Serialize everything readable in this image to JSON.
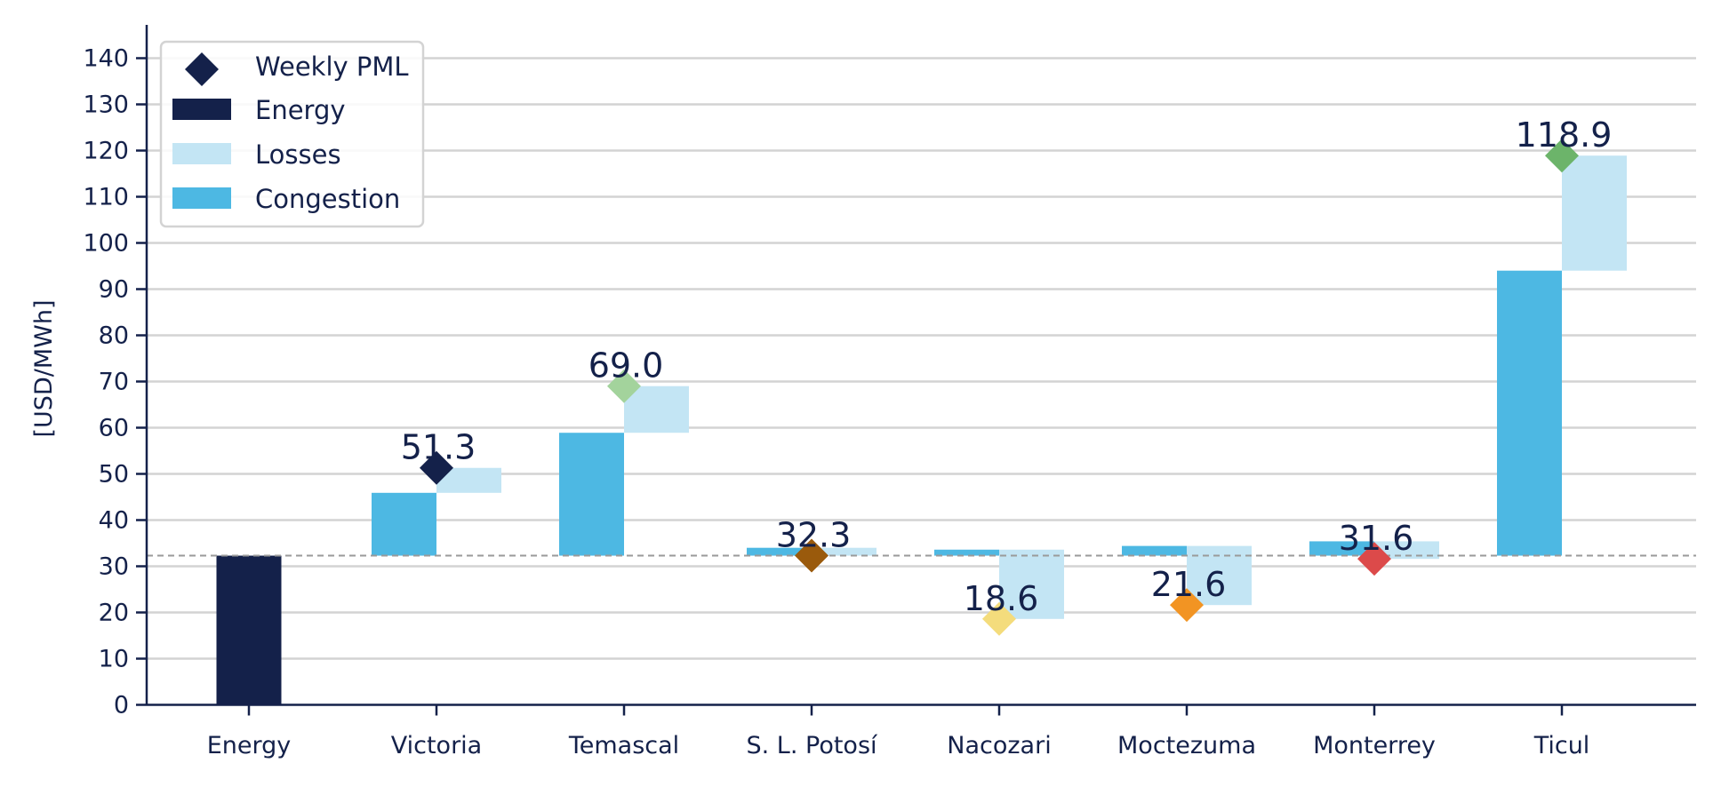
{
  "chart_data": {
    "type": "bar",
    "ylabel": "[USD/MWh]",
    "xlabel": "",
    "ylim": [
      0,
      145
    ],
    "yticks": [
      0,
      10,
      20,
      30,
      40,
      50,
      60,
      70,
      80,
      90,
      100,
      110,
      120,
      130,
      140
    ],
    "grid": "horizontal",
    "legend_position": "top-left",
    "reference_line": 32.3,
    "legend": [
      {
        "key": "pml",
        "label": "Weekly PML",
        "shape": "diamond",
        "color": "#14214a"
      },
      {
        "key": "energy",
        "label": "Energy",
        "shape": "rect",
        "color": "#14214a"
      },
      {
        "key": "losses",
        "label": "Losses",
        "shape": "rect",
        "color": "#c3e5f4"
      },
      {
        "key": "congestion",
        "label": "Congestion",
        "shape": "rect",
        "color": "#4db8e3"
      }
    ],
    "categories": [
      "Energy",
      "Victoria",
      "Temascal",
      "S. L. Potosí",
      "Nacozari",
      "Moctezuma",
      "Monterrey",
      "Ticul"
    ],
    "energy": 32.3,
    "congestion_end": [
      null,
      45.9,
      58.9,
      34.0,
      33.6,
      34.4,
      35.4,
      94.0
    ],
    "pml": [
      null,
      51.3,
      69.0,
      32.3,
      18.6,
      21.6,
      31.6,
      118.9
    ],
    "pml_labels": [
      "",
      "51.3",
      "69.0",
      "32.3",
      "18.6",
      "21.6",
      "31.6",
      "118.9"
    ],
    "marker_colors": [
      "#14214a",
      "#14214a",
      "#a3d39c",
      "#9a5a0c",
      "#f4dc7c",
      "#f29423",
      "#dc4a4a",
      "#6cb46a"
    ],
    "colors": {
      "axis": "#14214a",
      "grid": "#d3d3d3",
      "reference": "#9a9a9a",
      "energy": "#14214a",
      "congestion": "#4db8e3",
      "losses": "#c3e5f4"
    }
  }
}
